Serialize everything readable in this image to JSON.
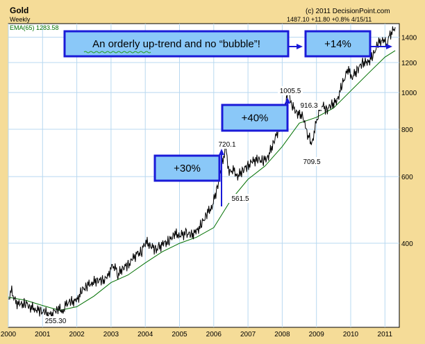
{
  "chart_data": {
    "type": "line",
    "title": "Gold",
    "subtitle": "Weekly",
    "copyright": "(c) 2011 DecisionPoint.com",
    "header_stats": "1487.10  +11.80  +0.8%  4/15/11",
    "ema_label": "EMA(65) 1283.58",
    "y_scale": "log",
    "ylim": [
      240,
      1520
    ],
    "xlim": [
      2000.0,
      2011.42
    ],
    "grid": true,
    "x_ticks": [
      2000,
      2001,
      2002,
      2003,
      2004,
      2005,
      2006,
      2007,
      2008,
      2009,
      2010,
      2011
    ],
    "x_tick_labels": [
      "2000",
      "2001",
      "2002",
      "2003",
      "2004",
      "2005",
      "2006",
      "2007",
      "2008",
      "2009",
      "2010",
      "2011"
    ],
    "y_ticks": [
      400,
      600,
      800,
      1000,
      1200,
      1400
    ],
    "y_tick_labels": [
      "400",
      "600",
      "800",
      "1000",
      "1200",
      "1400"
    ],
    "series": [
      {
        "name": "Weekly",
        "color": "#000000",
        "x": [
          2000.0,
          2000.1,
          2000.2,
          2000.35,
          2000.5,
          2000.65,
          2000.8,
          2000.95,
          2001.1,
          2001.2,
          2001.3,
          2001.45,
          2001.6,
          2001.7,
          2001.85,
          2002.0,
          2002.15,
          2002.3,
          2002.45,
          2002.6,
          2002.75,
          2002.9,
          2003.0,
          2003.1,
          2003.2,
          2003.35,
          2003.5,
          2003.65,
          2003.75,
          2003.9,
          2004.0,
          2004.15,
          2004.3,
          2004.4,
          2004.55,
          2004.7,
          2004.85,
          2005.0,
          2005.2,
          2005.35,
          2005.5,
          2005.65,
          2005.8,
          2005.95,
          2006.1,
          2006.25,
          2006.35,
          2006.45,
          2006.55,
          2006.7,
          2006.85,
          2007.0,
          2007.15,
          2007.3,
          2007.45,
          2007.6,
          2007.75,
          2007.9,
          2008.05,
          2008.18,
          2008.3,
          2008.45,
          2008.6,
          2008.72,
          2008.8,
          2008.85,
          2008.95,
          2009.05,
          2009.15,
          2009.3,
          2009.45,
          2009.6,
          2009.75,
          2009.92,
          2010.05,
          2010.2,
          2010.35,
          2010.5,
          2010.65,
          2010.8,
          2010.95,
          2011.05,
          2011.15,
          2011.3
        ],
        "values": [
          285,
          300,
          280,
          275,
          278,
          272,
          268,
          265,
          262,
          258,
          262,
          270,
          265,
          278,
          280,
          282,
          300,
          310,
          315,
          320,
          318,
          325,
          345,
          350,
          330,
          345,
          350,
          365,
          375,
          380,
          405,
          395,
          385,
          390,
          400,
          405,
          425,
          420,
          425,
          420,
          430,
          450,
          480,
          500,
          560,
          650,
          720,
          610,
          630,
          600,
          625,
          640,
          660,
          665,
          660,
          680,
          740,
          800,
          900,
          1005,
          920,
          880,
          870,
          780,
          760,
          720,
          800,
          880,
          930,
          900,
          930,
          950,
          1050,
          1150,
          1100,
          1150,
          1200,
          1200,
          1250,
          1350,
          1380,
          1340,
          1420,
          1487
        ]
      },
      {
        "name": "EMA(65)",
        "color": "#007000",
        "x": [
          2000.0,
          2000.5,
          2001.0,
          2001.5,
          2002.0,
          2002.5,
          2003.0,
          2003.5,
          2004.0,
          2004.5,
          2005.0,
          2005.5,
          2006.0,
          2006.5,
          2007.0,
          2007.5,
          2008.0,
          2008.5,
          2009.0,
          2009.5,
          2010.0,
          2010.5,
          2011.0,
          2011.3
        ],
        "values": [
          288,
          283,
          274,
          266,
          272,
          290,
          315,
          330,
          355,
          380,
          400,
          415,
          440,
          520,
          590,
          640,
          720,
          830,
          860,
          910,
          1010,
          1120,
          1240,
          1290
        ]
      }
    ],
    "annotations": [
      {
        "type": "label",
        "text": "255.30",
        "x": 2001.25,
        "y": 255
      },
      {
        "type": "label",
        "text": "720.1",
        "x": 2006.35,
        "y": 720
      },
      {
        "type": "label",
        "text": "561.5",
        "x": 2006.55,
        "y": 561
      },
      {
        "type": "label",
        "text": "1005.5",
        "x": 2008.18,
        "y": 1005
      },
      {
        "type": "label",
        "text": "916.3",
        "x": 2008.75,
        "y": 916
      },
      {
        "type": "label",
        "text": "709.5",
        "x": 2008.82,
        "y": 709
      },
      {
        "type": "box",
        "text": "+30%"
      },
      {
        "type": "box",
        "text": "+40%"
      },
      {
        "type": "box",
        "text": "An orderly up-trend and  no “bubble”!"
      },
      {
        "type": "box",
        "text": "+14%"
      }
    ]
  }
}
